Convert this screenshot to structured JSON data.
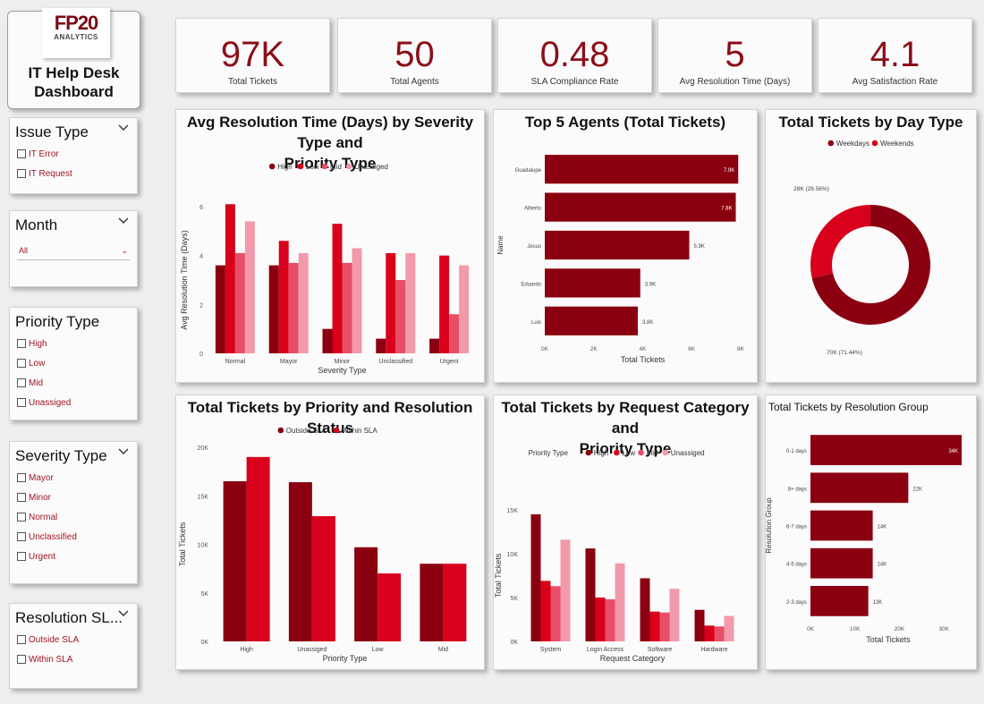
{
  "header": {
    "logo_text": "FP20",
    "logo_sub": "ANALYTICS",
    "dashboard_title": "IT Help Desk\nDashboard"
  },
  "kpis": [
    {
      "value": "97K",
      "label": "Total Tickets"
    },
    {
      "value": "50",
      "label": "Total Agents"
    },
    {
      "value": "0.48",
      "label": "SLA Compliance Rate"
    },
    {
      "value": "5",
      "label": "Avg Resolution Time (Days)"
    },
    {
      "value": "4.1",
      "label": "Avg Satisfaction Rate"
    }
  ],
  "slicers": {
    "issue_type": {
      "title": "Issue Type",
      "options": [
        "IT Error",
        "IT Request"
      ]
    },
    "month": {
      "title": "Month",
      "selected": "All"
    },
    "priority_type": {
      "title": "Priority Type",
      "options": [
        "High",
        "Low",
        "Mid",
        "Unassiged"
      ]
    },
    "severity_type": {
      "title": "Severity Type",
      "options": [
        "Mayor",
        "Minor",
        "Normal",
        "Unclassified",
        "Urgent"
      ]
    },
    "resolution_sla": {
      "title": "Resolution SL...",
      "options": [
        "Outside SLA",
        "Within SLA"
      ]
    }
  },
  "colors": {
    "dark": "#8b0010",
    "red": "#d9001c",
    "mid": "#e84e68",
    "light": "#f29aab"
  },
  "chart_data": [
    {
      "id": "avg_res",
      "type": "bar",
      "title": "Avg Resolution Time (Days) by Severity Type and\nPriority Type",
      "categories": [
        "Normal",
        "Mayor",
        "Minor",
        "Unclassified",
        "Urgent"
      ],
      "series": [
        {
          "name": "High",
          "values": [
            3.6,
            3.6,
            1.0,
            0.6,
            0.6
          ]
        },
        {
          "name": "Low",
          "values": [
            6.1,
            4.6,
            5.3,
            4.1,
            4.0
          ]
        },
        {
          "name": "Mid",
          "values": [
            4.1,
            3.7,
            3.7,
            3.0,
            1.6
          ]
        },
        {
          "name": "Unassiged",
          "values": [
            5.4,
            4.1,
            4.3,
            4.1,
            3.6
          ]
        }
      ],
      "xlabel": "Severity Type",
      "ylabel": "Avg Resolution Time (Days)",
      "ylim": [
        0,
        6
      ],
      "yticks": [
        0,
        2,
        4,
        6
      ],
      "ytick_labels": [
        "0",
        "2",
        "4",
        "6"
      ],
      "legend": "top"
    },
    {
      "id": "top_agents",
      "type": "bar",
      "orientation": "horizontal",
      "title": "Top 5 Agents (Total Tickets)",
      "categories": [
        "Guadalupe",
        "Alberto",
        "Jesus",
        "Eduardo",
        "Luis"
      ],
      "values": [
        7.9,
        7.8,
        5.9,
        3.9,
        3.8
      ],
      "value_labels": [
        "7.9K",
        "7.8K",
        "5.9K",
        "3.9K",
        "3.8K"
      ],
      "xlabel": "Total Tickets",
      "ylabel": "Name",
      "xlim": [
        0,
        8
      ],
      "xticks": [
        0,
        2,
        4,
        6,
        8
      ],
      "xtick_labels": [
        "0K",
        "2K",
        "4K",
        "6K",
        "8K"
      ]
    },
    {
      "id": "day_type",
      "type": "pie",
      "title": "Total Tickets by Day Type",
      "categories": [
        "Weekdays",
        "Weekends"
      ],
      "values": [
        71.44,
        28.56
      ],
      "value_labels": [
        "70K (71.44%)",
        "28K (28.56%)"
      ],
      "legend": "top"
    },
    {
      "id": "priority_res",
      "type": "bar",
      "title": "Total Tickets by Priority and Resolution Status",
      "categories": [
        "High",
        "Unassiged",
        "Low",
        "Mid"
      ],
      "series": [
        {
          "name": "Outside SLA",
          "values": [
            16.5,
            16.4,
            9.7,
            8.0
          ]
        },
        {
          "name": "Within SLA",
          "values": [
            19.0,
            12.9,
            7.0,
            8.0
          ]
        }
      ],
      "xlabel": "Priority Type",
      "ylabel": "Total Tickets",
      "ylim": [
        0,
        20
      ],
      "yticks": [
        0,
        5,
        10,
        15,
        20
      ],
      "ytick_labels": [
        "0K",
        "5K",
        "10K",
        "15K",
        "20K"
      ],
      "legend": "top"
    },
    {
      "id": "req_cat",
      "type": "bar",
      "title": "Total Tickets by Request Category and\nPriority Type",
      "categories": [
        "System",
        "Login Access",
        "Software",
        "Hardware"
      ],
      "series": [
        {
          "name": "High",
          "values": [
            14.5,
            10.6,
            7.2,
            3.6
          ]
        },
        {
          "name": "Low",
          "values": [
            6.9,
            5.0,
            3.4,
            1.8
          ]
        },
        {
          "name": "Mid",
          "values": [
            6.3,
            4.8,
            3.3,
            1.7
          ]
        },
        {
          "name": "Unassiged",
          "values": [
            11.6,
            8.9,
            6.0,
            2.9
          ]
        }
      ],
      "xlabel": "Request Category",
      "ylabel": "Total Tickets",
      "ylim": [
        0,
        15
      ],
      "yticks": [
        0,
        5,
        10,
        15
      ],
      "ytick_labels": [
        "0K",
        "5K",
        "10K",
        "15K"
      ],
      "legend_title": "Priority Type",
      "legend": "top"
    },
    {
      "id": "res_group",
      "type": "bar",
      "orientation": "horizontal",
      "title": "Total Tickets by Resolution Group",
      "categories": [
        "0-1 days",
        "8+ days",
        "6-7 days",
        "4-5 days",
        "2-3 days"
      ],
      "values": [
        34,
        22,
        14,
        14,
        13
      ],
      "value_labels": [
        "34K",
        "22K",
        "14K",
        "14K",
        "13K"
      ],
      "xlabel": "Total Tickets",
      "ylabel": "Resolution Group",
      "xlim": [
        0,
        35
      ],
      "xticks": [
        0,
        10,
        20,
        30
      ],
      "xtick_labels": [
        "0K",
        "10K",
        "20K",
        "30K"
      ]
    }
  ]
}
